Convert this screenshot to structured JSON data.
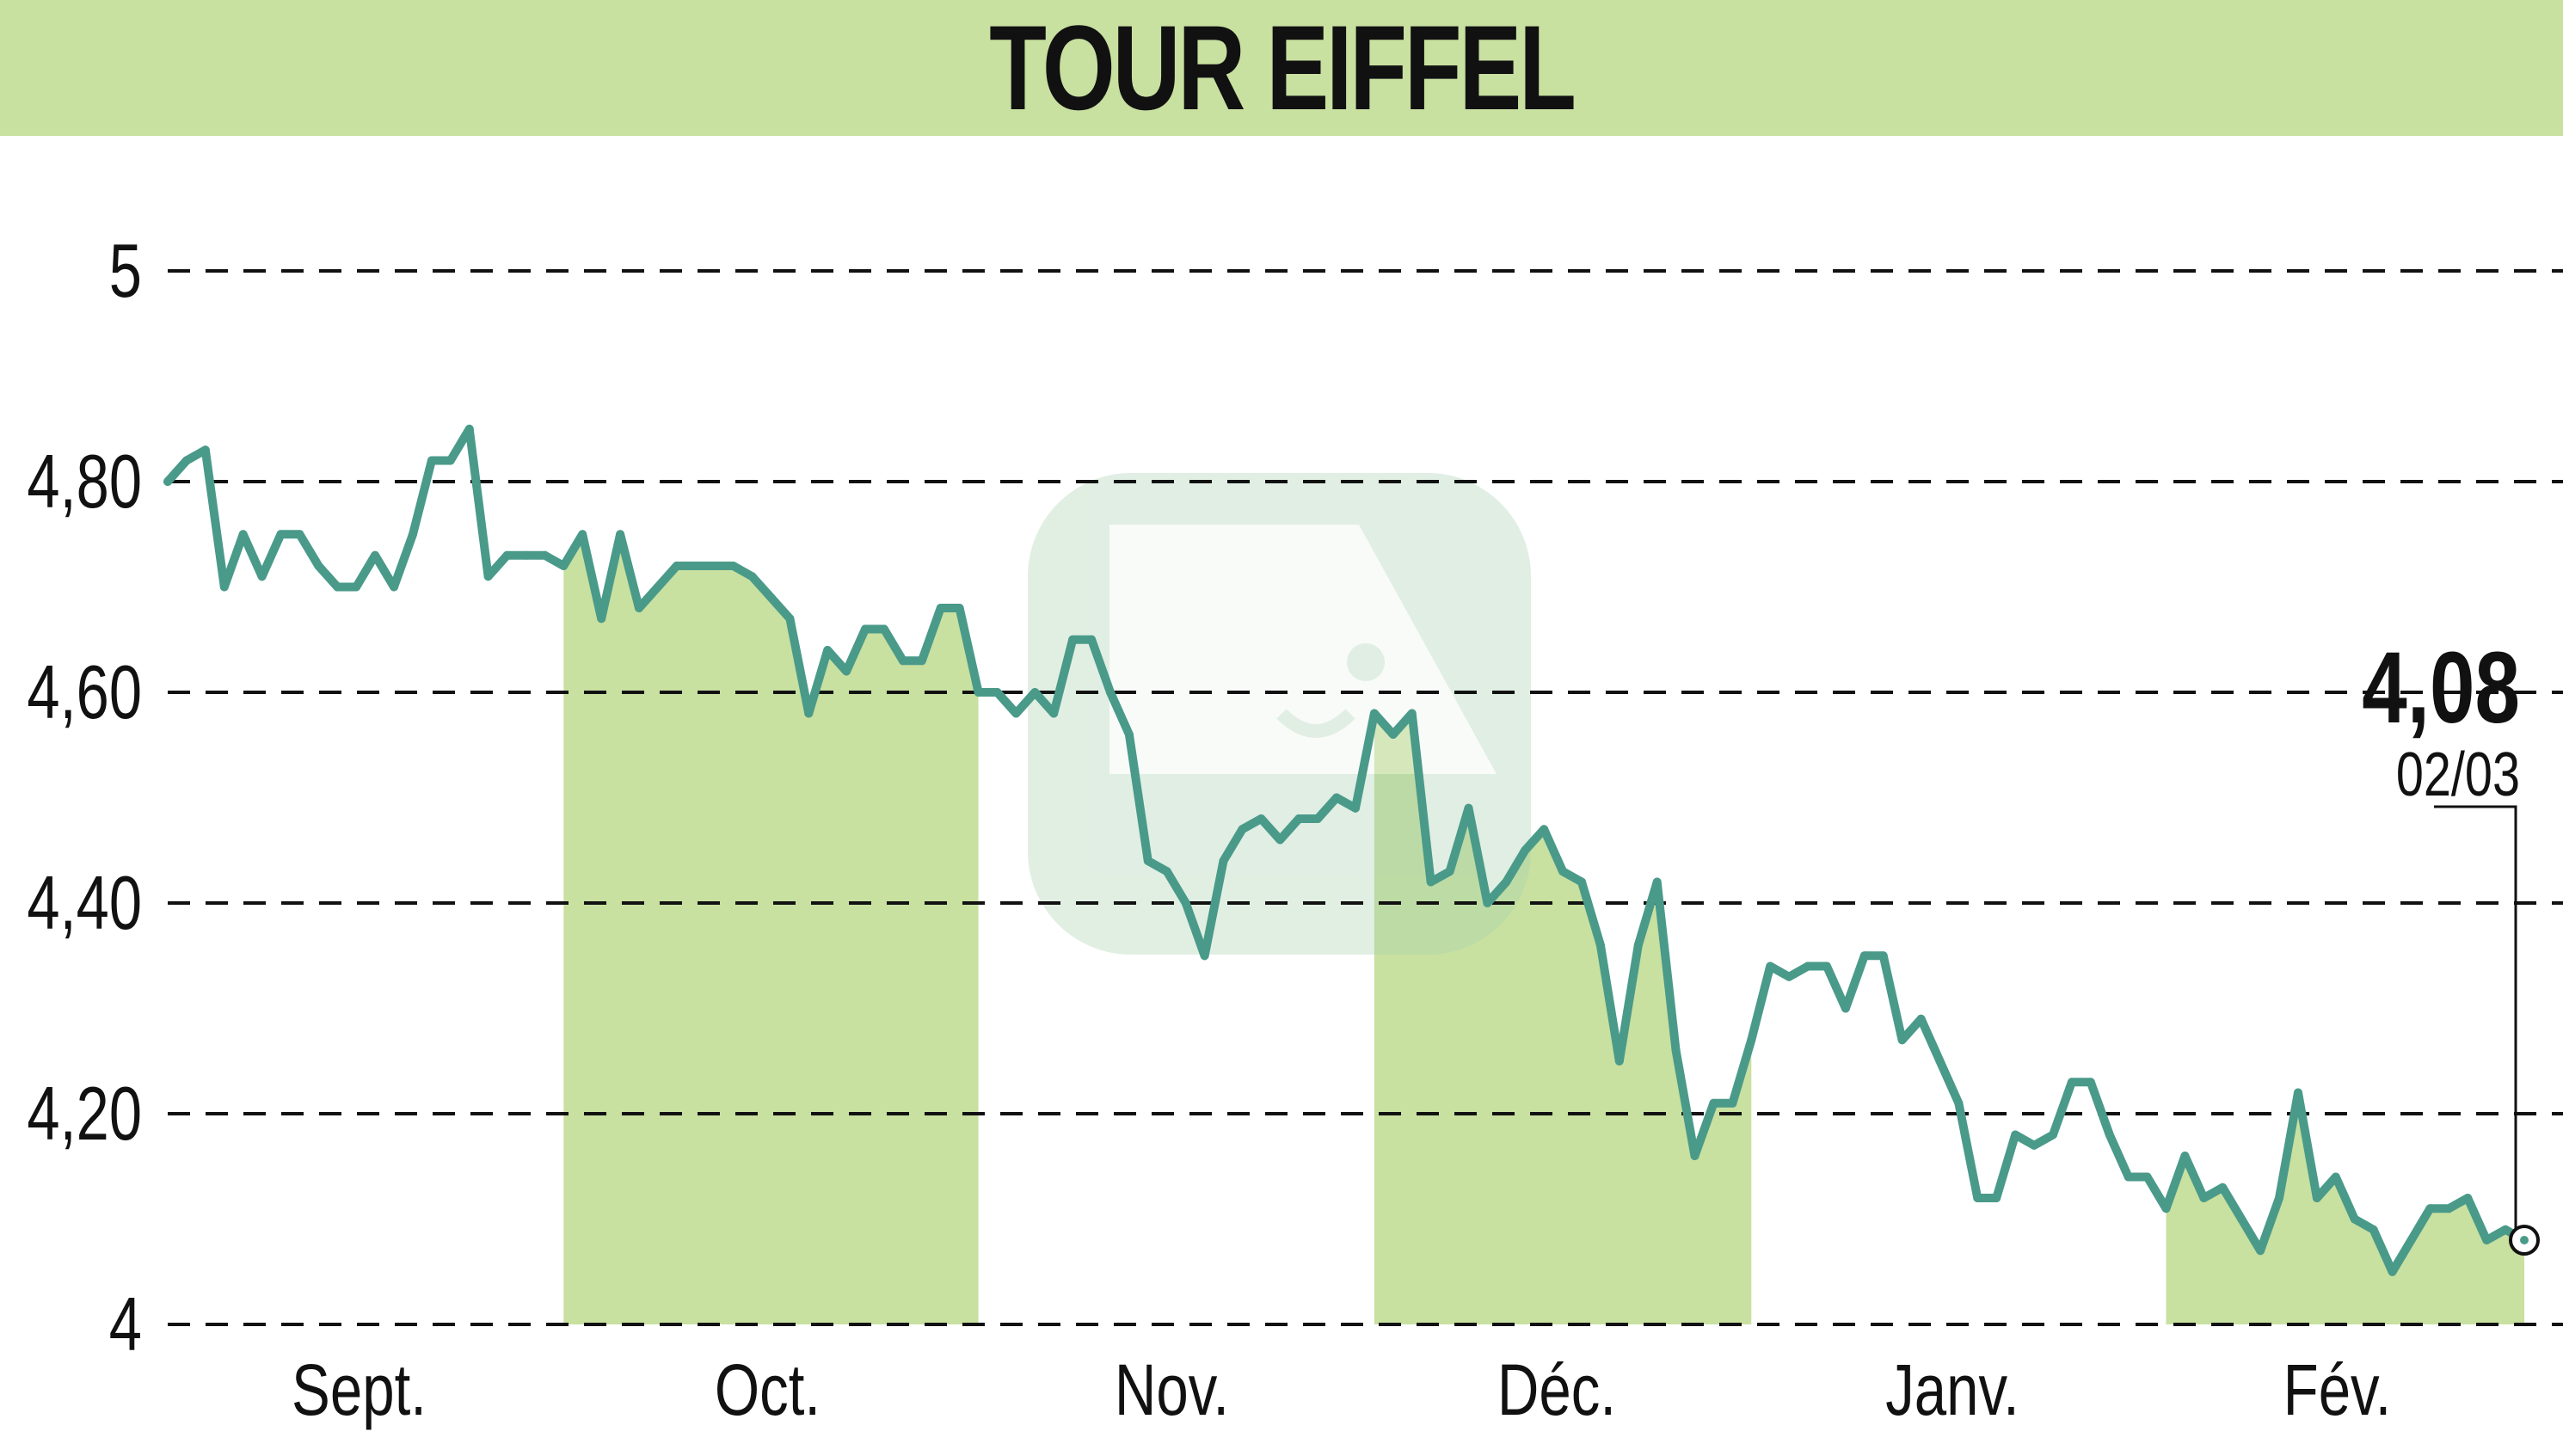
{
  "header": {
    "title": "TOUR EIFFEL"
  },
  "chart_data": {
    "type": "line",
    "title": "TOUR EIFFEL",
    "xlabel": "",
    "ylabel": "",
    "ylim": [
      4,
      5
    ],
    "y_ticks": [
      {
        "value": 4,
        "label": "4"
      },
      {
        "value": 4.2,
        "label": "4,20"
      },
      {
        "value": 4.4,
        "label": "4,40"
      },
      {
        "value": 4.6,
        "label": "4,60"
      },
      {
        "value": 4.8,
        "label": "4,80"
      },
      {
        "value": 5,
        "label": "5"
      }
    ],
    "grid": true,
    "months": [
      {
        "label": "Sept.",
        "shaded": false
      },
      {
        "label": "Oct.",
        "shaded": true
      },
      {
        "label": "Nov.",
        "shaded": false
      },
      {
        "label": "Déc.",
        "shaded": true
      },
      {
        "label": "Janv.",
        "shaded": false
      },
      {
        "label": "Fév.",
        "shaded": true
      }
    ],
    "series": [
      {
        "values": [
          4.8,
          4.82,
          4.83,
          4.7,
          4.75,
          4.71,
          4.75,
          4.75,
          4.72,
          4.7,
          4.7,
          4.73,
          4.7,
          4.75,
          4.82,
          4.82,
          4.85,
          4.71,
          4.73,
          4.73,
          4.73,
          4.72,
          4.75,
          4.67,
          4.75,
          4.68,
          4.7,
          4.72,
          4.72,
          4.72,
          4.72,
          4.71,
          4.69,
          4.67,
          4.58,
          4.64,
          4.62,
          4.66,
          4.66,
          4.63,
          4.63,
          4.68,
          4.68,
          4.6,
          4.6,
          4.58,
          4.6,
          4.58,
          4.65,
          4.65,
          4.6,
          4.56,
          4.44,
          4.43,
          4.4,
          4.35,
          4.44,
          4.47,
          4.48,
          4.46,
          4.48,
          4.48,
          4.5,
          4.49,
          4.58,
          4.56,
          4.58,
          4.42,
          4.43,
          4.49,
          4.4,
          4.42,
          4.45,
          4.47,
          4.43,
          4.42,
          4.36,
          4.25,
          4.36,
          4.42,
          4.26,
          4.16,
          4.21,
          4.21,
          4.27,
          4.34,
          4.33,
          4.34,
          4.34,
          4.3,
          4.35,
          4.35,
          4.27,
          4.29,
          4.25,
          4.21,
          4.12,
          4.12,
          4.18,
          4.17,
          4.18,
          4.23,
          4.23,
          4.18,
          4.14,
          4.14,
          4.11,
          4.16,
          4.12,
          4.13,
          4.1,
          4.07,
          4.12,
          4.22,
          4.12,
          4.14,
          4.1,
          4.09,
          4.05,
          4.08,
          4.11,
          4.11,
          4.12,
          4.08,
          4.09,
          4.08
        ]
      }
    ],
    "last_value": {
      "value_label": "4,08",
      "date_label": "02/03"
    },
    "colors": {
      "line": "#4a9a8a",
      "shade": "#c8e0a0",
      "grid": "#111111",
      "title_bg": "#c8e0a0"
    }
  }
}
